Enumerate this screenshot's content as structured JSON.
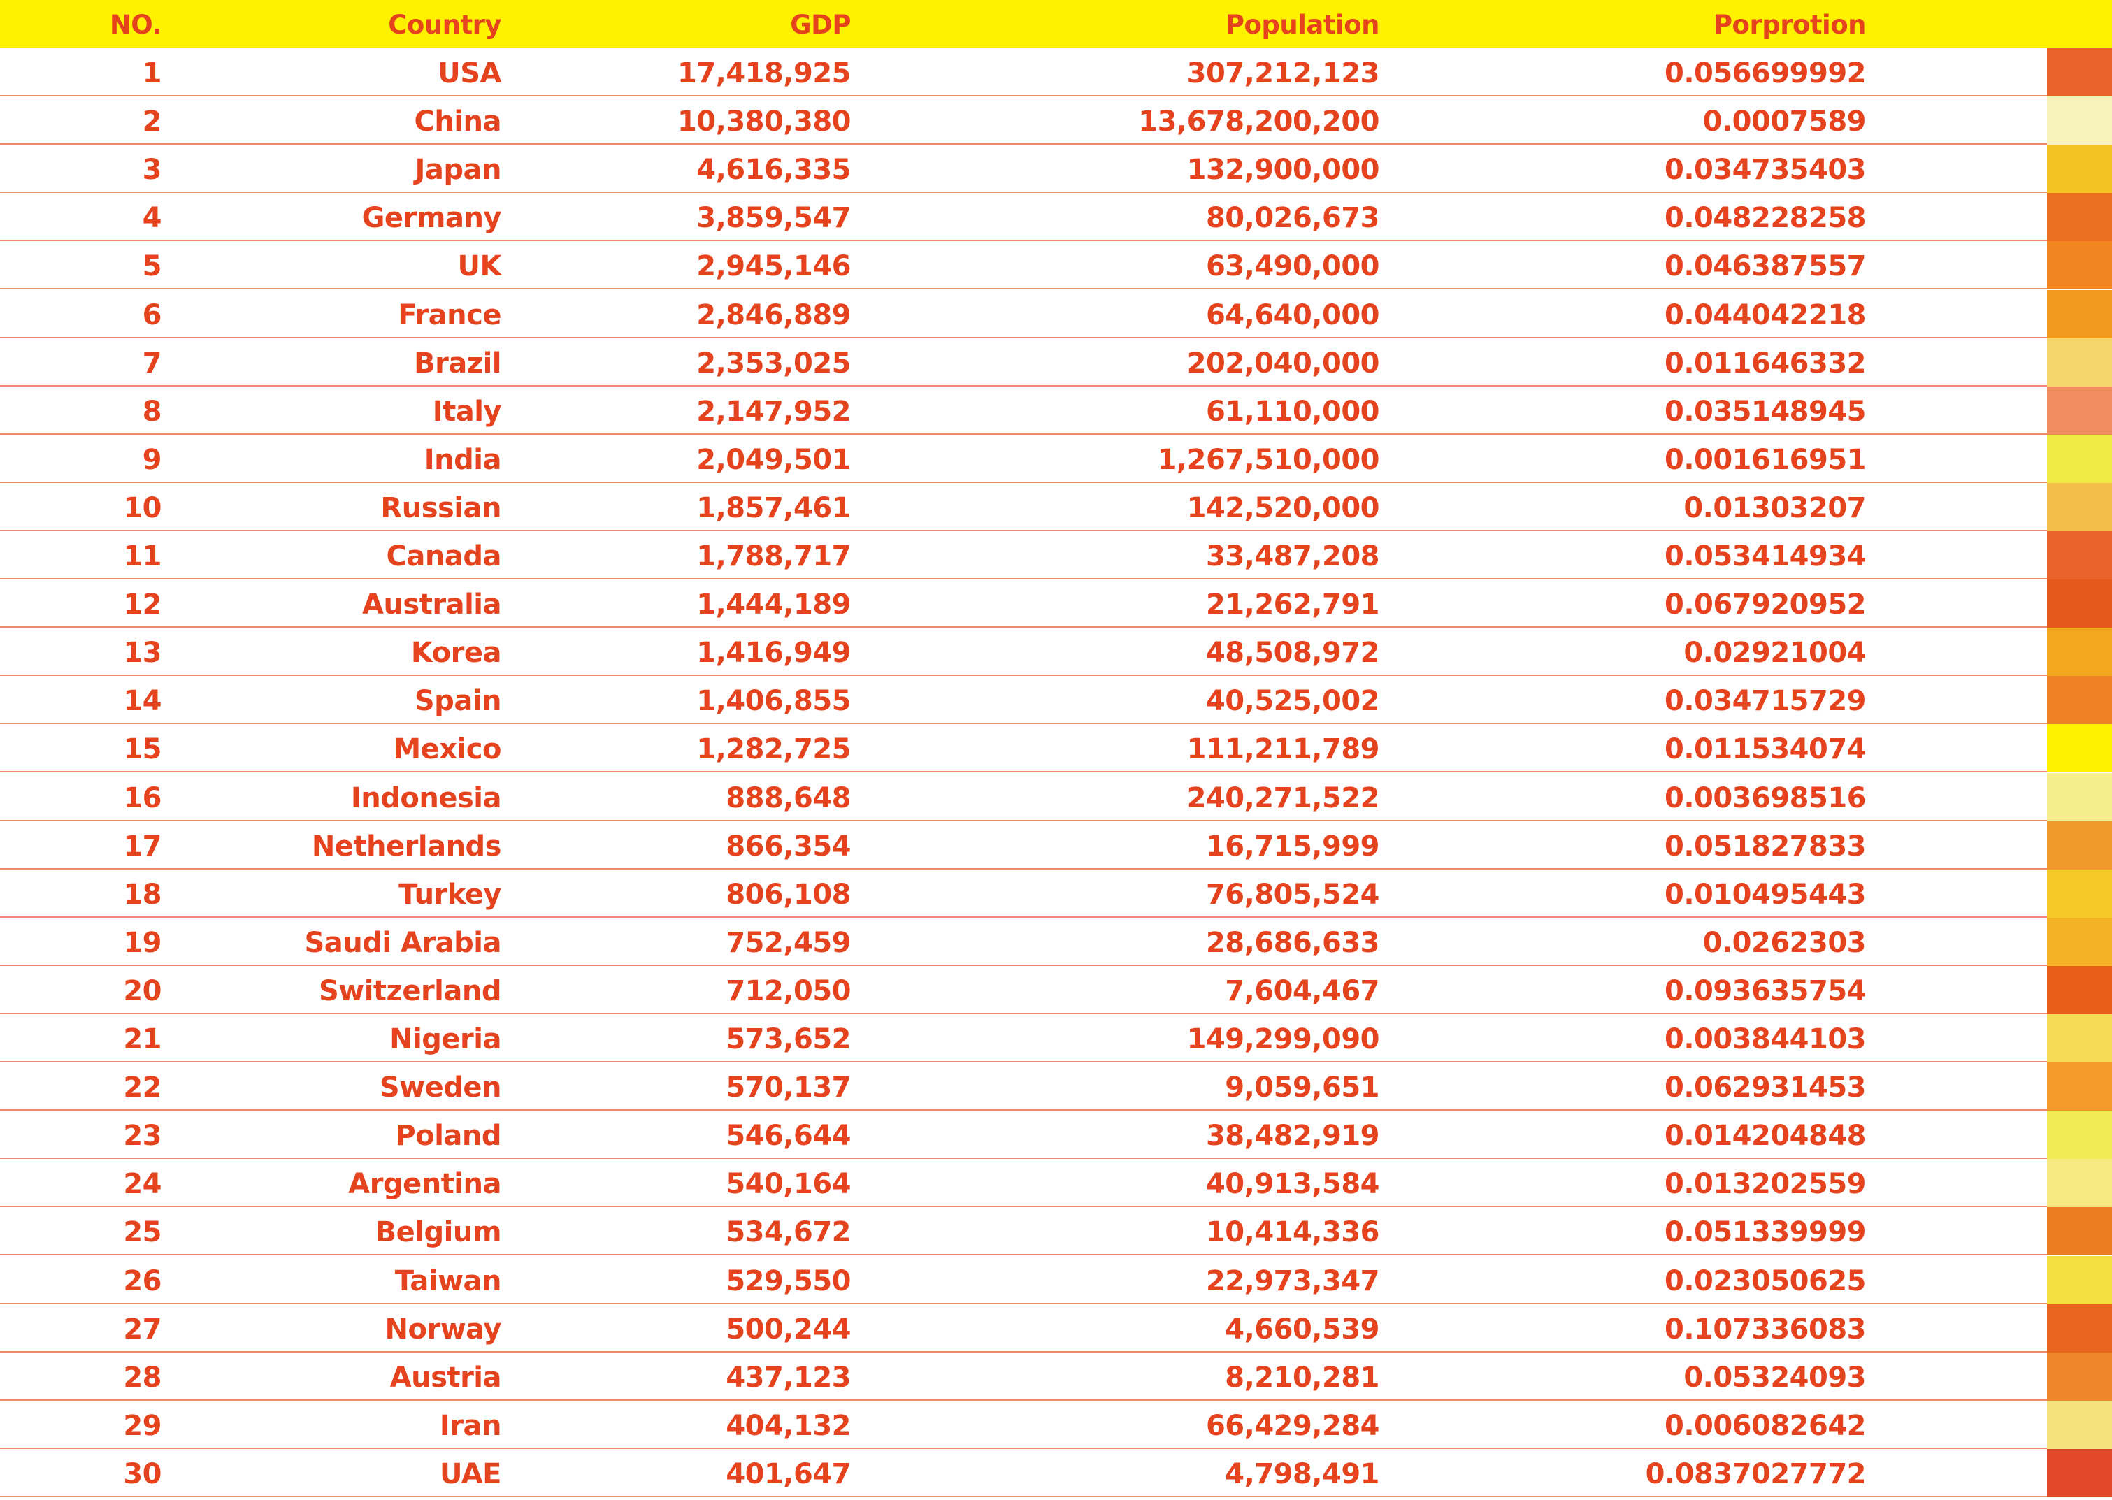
{
  "chart_data": {
    "type": "table",
    "columns": [
      "NO.",
      "Country",
      "GDP",
      "Population",
      "Porprotion"
    ],
    "rows": [
      {
        "no": "1",
        "country": "USA",
        "gdp": "17,418,925",
        "population": "307,212,123",
        "proportion": "0.056699992",
        "color": "#e8642a"
      },
      {
        "no": "2",
        "country": "China",
        "gdp": "10,380,380",
        "population": "13,678,200,200",
        "proportion": "0.0007589",
        "color": "#f6f3b9"
      },
      {
        "no": "3",
        "country": "Japan",
        "gdp": "4,616,335",
        "population": "132,900,000",
        "proportion": "0.034735403",
        "color": "#f4c323"
      },
      {
        "no": "4",
        "country": "Germany",
        "gdp": "3,859,547",
        "population": "80,026,673",
        "proportion": "0.048228258",
        "color": "#ed6f21"
      },
      {
        "no": "5",
        "country": "UK",
        "gdp": "2,945,146",
        "population": "63,490,000",
        "proportion": "0.046387557",
        "color": "#f0841f"
      },
      {
        "no": "6",
        "country": "France",
        "gdp": "2,846,889",
        "population": "64,640,000",
        "proportion": "0.044042218",
        "color": "#f29a1e"
      },
      {
        "no": "7",
        "country": "Brazil",
        "gdp": "2,353,025",
        "population": "202,040,000",
        "proportion": "0.011646332",
        "color": "#f6d56a"
      },
      {
        "no": "8",
        "country": "Italy",
        "gdp": "2,147,952",
        "population": "61,110,000",
        "proportion": "0.035148945",
        "color": "#f08c60"
      },
      {
        "no": "9",
        "country": "India",
        "gdp": "2,049,501",
        "population": "1,267,510,000",
        "proportion": "0.001616951",
        "color": "#f1eb45"
      },
      {
        "no": "10",
        "country": "Russian",
        "gdp": "1,857,461",
        "population": "142,520,000",
        "proportion": "0.01303207",
        "color": "#f3bd4a"
      },
      {
        "no": "11",
        "country": "Canada",
        "gdp": "1,788,717",
        "population": "33,487,208",
        "proportion": "0.053414934",
        "color": "#e8642a"
      },
      {
        "no": "12",
        "country": "Australia",
        "gdp": "1,444,189",
        "population": "21,262,791",
        "proportion": "0.067920952",
        "color": "#e55a1c"
      },
      {
        "no": "13",
        "country": "Korea",
        "gdp": "1,416,949",
        "population": "48,508,972",
        "proportion": "0.02921004",
        "color": "#f3a71f"
      },
      {
        "no": "14",
        "country": "Spain",
        "gdp": "1,406,855",
        "population": "40,525,002",
        "proportion": "0.034715729",
        "color": "#f08225"
      },
      {
        "no": "15",
        "country": "Mexico",
        "gdp": "1,282,725",
        "population": "111,211,789",
        "proportion": "0.011534074",
        "color": "#fff200"
      },
      {
        "no": "16",
        "country": "Indonesia",
        "gdp": "888,648",
        "population": "240,271,522",
        "proportion": "0.003698516",
        "color": "#f4ef8c"
      },
      {
        "no": "17",
        "country": "Netherlands",
        "gdp": "866,354",
        "population": "16,715,999",
        "proportion": "0.051827833",
        "color": "#f19a2c"
      },
      {
        "no": "18",
        "country": "Turkey",
        "gdp": "806,108",
        "population": "76,805,524",
        "proportion": "0.010495443",
        "color": "#f4c829"
      },
      {
        "no": "19",
        "country": "Saudi Arabia",
        "gdp": "752,459",
        "population": "28,686,633",
        "proportion": "0.0262303",
        "color": "#f3b324"
      },
      {
        "no": "20",
        "country": "Switzerland",
        "gdp": "712,050",
        "population": "7,604,467",
        "proportion": "0.093635754",
        "color": "#e75f19"
      },
      {
        "no": "21",
        "country": "Nigeria",
        "gdp": "573,652",
        "population": "149,299,090",
        "proportion": "0.003844103",
        "color": "#f6dc55"
      },
      {
        "no": "22",
        "country": "Sweden",
        "gdp": "570,137",
        "population": "9,059,651",
        "proportion": "0.062931453",
        "color": "#f29a2a"
      },
      {
        "no": "23",
        "country": "Poland",
        "gdp": "546,644",
        "population": "38,482,919",
        "proportion": "0.014204848",
        "color": "#f0eb52"
      },
      {
        "no": "24",
        "country": "Argentina",
        "gdp": "540,164",
        "population": "40,913,584",
        "proportion": "0.013202559",
        "color": "#f5e982"
      },
      {
        "no": "25",
        "country": "Belgium",
        "gdp": "534,672",
        "population": "10,414,336",
        "proportion": "0.051339999",
        "color": "#ee7d22"
      },
      {
        "no": "26",
        "country": "Taiwan",
        "gdp": "529,550",
        "population": "22,973,347",
        "proportion": "0.023050625",
        "color": "#f4e040"
      },
      {
        "no": "27",
        "country": "Norway",
        "gdp": "500,244",
        "population": "4,660,539",
        "proportion": "0.107336083",
        "color": "#e8641f"
      },
      {
        "no": "28",
        "country": "Austria",
        "gdp": "437,123",
        "population": "8,210,281",
        "proportion": "0.05324093",
        "color": "#f0862a"
      },
      {
        "no": "29",
        "country": "Iran",
        "gdp": "404,132",
        "population": "66,429,284",
        "proportion": "0.006082642",
        "color": "#f5e27e"
      },
      {
        "no": "30",
        "country": "UAE",
        "gdp": "401,647",
        "population": "4,798,491",
        "proportion": "0.0837027772",
        "color": "#e3482a"
      }
    ]
  },
  "colors": {
    "header_bg": "#fff200",
    "text": "#e5421e",
    "rule": "#f08a6c"
  }
}
